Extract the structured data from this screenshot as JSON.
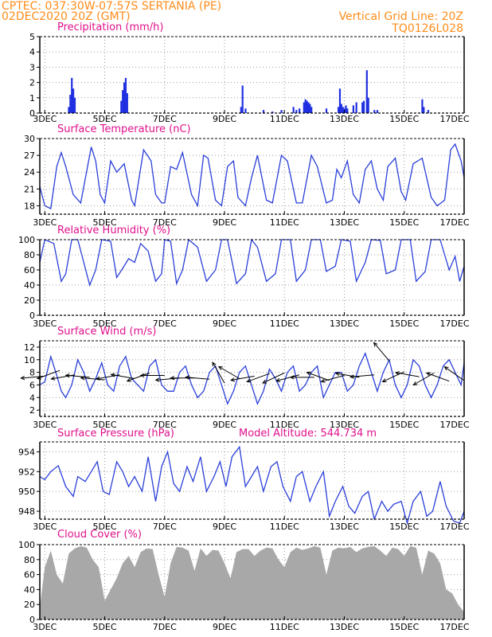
{
  "header": {
    "line1": "CPTEC:   037:30W-07:57S   SERTANIA (PE)",
    "line2": "02DEC2020 20Z (GMT)",
    "grid_note": "Vertical Grid Line: 20Z",
    "code": "TQ0126L028"
  },
  "colors": {
    "header": "#ff8c1a",
    "title": "#e0108c",
    "line": "#2a3fd8",
    "bar": "#2030e0",
    "cloud": "#a8a8a8",
    "grid": "#9a9a9a"
  },
  "x_axis": {
    "range_days": [
      2.8333,
      17.0
    ],
    "tick_days": [
      3,
      5,
      7,
      9,
      11,
      13,
      15,
      17
    ],
    "tick_labels": [
      "3DEC",
      "5DEC",
      "7DEC",
      "9DEC",
      "11DEC",
      "13DEC",
      "15DEC",
      "17DEC"
    ]
  },
  "chart_data": [
    {
      "type": "bar",
      "title": "Precipitation (mm/h)",
      "ylim": [
        0,
        5
      ],
      "yticks": [
        0,
        1,
        2,
        3,
        4,
        5
      ],
      "x": [
        3.8,
        3.85,
        3.9,
        3.95,
        4.0,
        5.55,
        5.6,
        5.65,
        5.7,
        5.75,
        9.55,
        9.6,
        9.7,
        10.3,
        10.6,
        10.9,
        11.3,
        11.4,
        11.5,
        11.65,
        11.7,
        11.75,
        11.8,
        11.85,
        11.9,
        12.4,
        12.8,
        12.85,
        12.9,
        12.95,
        13.0,
        13.05,
        13.1,
        13.3,
        13.4,
        13.6,
        13.65,
        13.75,
        13.8,
        14.0,
        14.1,
        15.6,
        15.65,
        15.8
      ],
      "values": [
        0.4,
        1.2,
        2.3,
        1.6,
        1.0,
        0.8,
        1.5,
        2.0,
        2.3,
        1.3,
        0.4,
        1.8,
        0.3,
        0.2,
        0.1,
        0.2,
        0.4,
        0.2,
        0.3,
        0.7,
        0.9,
        0.8,
        0.7,
        0.6,
        0.4,
        0.3,
        0.4,
        1.6,
        0.6,
        0.4,
        0.3,
        0.5,
        0.3,
        0.5,
        0.7,
        0.7,
        0.8,
        2.8,
        1.0,
        0.2,
        0.2,
        0.9,
        0.4,
        0.2
      ]
    },
    {
      "type": "line",
      "title": "Surface Temperature (nC)",
      "ylim": [
        16.5,
        30
      ],
      "yticks": [
        18,
        21,
        24,
        27,
        30
      ],
      "x": [
        2.83,
        3.0,
        3.2,
        3.4,
        3.55,
        3.7,
        3.95,
        4.2,
        4.55,
        4.7,
        4.85,
        5.0,
        5.2,
        5.4,
        5.65,
        5.9,
        6.0,
        6.3,
        6.55,
        6.7,
        6.9,
        7.0,
        7.2,
        7.4,
        7.6,
        7.9,
        8.1,
        8.3,
        8.45,
        8.7,
        8.9,
        9.1,
        9.3,
        9.45,
        9.7,
        9.9,
        10.1,
        10.4,
        10.6,
        10.9,
        11.1,
        11.4,
        11.6,
        11.9,
        12.1,
        12.4,
        12.6,
        12.75,
        12.9,
        13.1,
        13.3,
        13.5,
        13.7,
        13.9,
        14.1,
        14.3,
        14.45,
        14.7,
        14.9,
        15.05,
        15.3,
        15.6,
        15.9,
        16.1,
        16.35,
        16.55,
        16.7,
        16.9,
        17.0
      ],
      "values": [
        21.5,
        18.0,
        17.5,
        25.0,
        27.5,
        25.0,
        20.0,
        18.5,
        28.5,
        26.0,
        20.0,
        18.5,
        26.0,
        24.0,
        25.5,
        19.0,
        18.0,
        28.0,
        26.0,
        20.0,
        18.5,
        18.5,
        25.0,
        24.5,
        27.5,
        20.0,
        18.0,
        27.0,
        26.5,
        19.0,
        18.0,
        25.0,
        26.0,
        19.5,
        18.0,
        23.0,
        27.0,
        19.0,
        18.5,
        27.0,
        26.0,
        18.5,
        18.5,
        27.0,
        25.0,
        18.5,
        19.0,
        24.5,
        23.0,
        26.0,
        20.0,
        18.5,
        24.5,
        26.0,
        21.0,
        19.0,
        25.0,
        26.5,
        20.5,
        19.0,
        25.5,
        26.5,
        19.5,
        18.0,
        19.0,
        28.0,
        29.0,
        26.0,
        23.0
      ]
    },
    {
      "type": "line",
      "title": "Relative Humidity (%)",
      "ylim": [
        0,
        100
      ],
      "yticks": [
        0,
        20,
        40,
        60,
        80,
        100
      ],
      "x": [
        2.83,
        3.0,
        3.3,
        3.55,
        3.7,
        3.9,
        4.1,
        4.5,
        4.7,
        4.9,
        5.2,
        5.4,
        5.6,
        5.8,
        6.0,
        6.2,
        6.45,
        6.7,
        6.9,
        7.0,
        7.2,
        7.4,
        7.6,
        7.8,
        8.1,
        8.4,
        8.7,
        8.9,
        9.1,
        9.4,
        9.7,
        9.9,
        10.1,
        10.4,
        10.7,
        10.9,
        11.2,
        11.4,
        11.7,
        11.9,
        12.2,
        12.4,
        12.7,
        12.9,
        13.2,
        13.4,
        13.7,
        13.9,
        14.2,
        14.4,
        14.7,
        14.9,
        15.2,
        15.4,
        15.7,
        15.9,
        16.2,
        16.5,
        16.7,
        16.85,
        17.0
      ],
      "values": [
        70,
        100,
        95,
        45,
        55,
        100,
        100,
        40,
        60,
        100,
        98,
        50,
        62,
        75,
        70,
        95,
        85,
        45,
        55,
        100,
        98,
        42,
        60,
        100,
        90,
        45,
        60,
        100,
        100,
        42,
        55,
        100,
        90,
        45,
        55,
        100,
        100,
        45,
        60,
        100,
        100,
        58,
        65,
        100,
        98,
        45,
        70,
        100,
        99,
        55,
        60,
        100,
        100,
        45,
        58,
        100,
        100,
        60,
        78,
        45,
        65
      ]
    },
    {
      "type": "line",
      "title": "Surface Wind (m/s)",
      "ylim": [
        1,
        13
      ],
      "yticks": [
        2,
        4,
        6,
        8,
        10,
        12
      ],
      "x": [
        2.83,
        3.0,
        3.2,
        3.4,
        3.55,
        3.7,
        3.9,
        4.1,
        4.3,
        4.5,
        4.7,
        4.9,
        5.1,
        5.3,
        5.5,
        5.7,
        5.9,
        6.1,
        6.3,
        6.5,
        6.7,
        6.9,
        7.1,
        7.3,
        7.5,
        7.7,
        7.9,
        8.1,
        8.3,
        8.5,
        8.7,
        8.9,
        9.1,
        9.3,
        9.5,
        9.7,
        9.9,
        10.1,
        10.3,
        10.5,
        10.7,
        10.9,
        11.1,
        11.3,
        11.5,
        11.7,
        11.9,
        12.1,
        12.3,
        12.5,
        12.7,
        12.9,
        13.1,
        13.3,
        13.5,
        13.7,
        13.9,
        14.1,
        14.3,
        14.5,
        14.7,
        14.9,
        15.1,
        15.3,
        15.5,
        15.7,
        15.9,
        16.1,
        16.3,
        16.5,
        16.7,
        16.9,
        17.0
      ],
      "values": [
        6,
        6.5,
        10.5,
        7.5,
        5,
        4,
        6,
        10,
        8,
        5,
        7,
        9.5,
        6,
        5,
        9,
        10.5,
        7,
        6,
        5,
        9,
        10,
        6,
        5,
        5,
        8,
        9,
        6,
        4,
        5,
        8,
        9,
        6,
        3,
        5,
        8,
        9,
        6,
        3,
        5,
        8.5,
        7,
        5,
        8,
        9,
        5,
        6,
        8,
        9,
        4,
        6,
        8,
        8,
        5,
        6,
        9,
        11,
        8,
        5,
        8,
        10,
        6,
        4,
        6,
        10,
        9,
        6,
        4,
        6,
        9,
        10,
        8,
        6,
        9.5
      ],
      "wind_barbs": {
        "x": [
          3.0,
          3.5,
          4.0,
          4.5,
          5.0,
          5.5,
          6.0,
          6.5,
          7.0,
          7.5,
          8.0,
          8.5,
          9.0,
          9.5,
          10.0,
          10.5,
          11.0,
          11.5,
          12.0,
          12.5,
          13.0,
          13.5,
          14.0,
          14.5,
          15.0,
          15.5,
          16.0,
          16.5,
          17.0
        ],
        "speed": [
          7.4,
          8.3,
          7.6,
          7.2,
          6.8,
          7.6,
          7.0,
          7.9,
          7.5,
          7.1,
          7.1,
          6.9,
          6.3,
          7.0,
          7.4,
          7.8,
          7.9,
          7.6,
          7.2,
          6.7,
          7.5,
          7.2,
          7.6,
          9.8,
          8.1,
          7.3,
          7.9,
          6.6,
          6.7
        ],
        "dir_deg": [
          85,
          70,
          80,
          95,
          95,
          80,
          100,
          70,
          90,
          85,
          90,
          95,
          150,
          120,
          80,
          70,
          65,
          75,
          90,
          110,
          75,
          100,
          85,
          140,
          65,
          100,
          60,
          110,
          125
        ]
      }
    },
    {
      "type": "line",
      "title": "Surface Pressure (hPa)",
      "annotation": "Model Altitude: 544.734 m",
      "ylim": [
        947.2,
        955
      ],
      "yticks": [
        948,
        950,
        952,
        954
      ],
      "x": [
        2.83,
        3.0,
        3.2,
        3.45,
        3.7,
        3.95,
        4.1,
        4.35,
        4.55,
        4.75,
        4.95,
        5.15,
        5.4,
        5.6,
        5.8,
        6.0,
        6.25,
        6.45,
        6.7,
        6.9,
        7.1,
        7.3,
        7.5,
        7.75,
        7.95,
        8.2,
        8.4,
        8.65,
        8.85,
        9.05,
        9.25,
        9.5,
        9.7,
        9.9,
        10.1,
        10.3,
        10.55,
        10.75,
        10.95,
        11.2,
        11.4,
        11.6,
        11.85,
        12.05,
        12.3,
        12.5,
        12.7,
        12.95,
        13.15,
        13.35,
        13.6,
        13.8,
        14.0,
        14.25,
        14.45,
        14.65,
        14.9,
        15.1,
        15.3,
        15.55,
        15.75,
        15.95,
        16.2,
        16.4,
        16.65,
        16.85,
        17.0
      ],
      "values": [
        951.5,
        951.2,
        952.0,
        952.6,
        950.5,
        949.5,
        951.5,
        951.0,
        952.0,
        953.0,
        950.0,
        949.7,
        953.0,
        952.0,
        950.5,
        951.5,
        950.0,
        953.5,
        949.0,
        952.5,
        954.0,
        950.8,
        950.0,
        952.5,
        951.0,
        953.5,
        950.0,
        951.5,
        953.0,
        950.5,
        953.5,
        954.5,
        950.5,
        951.5,
        952.5,
        950.0,
        952.5,
        953.0,
        950.5,
        949.0,
        951.5,
        952.0,
        949.0,
        950.5,
        952.0,
        947.5,
        949.0,
        950.5,
        948.5,
        947.8,
        949.5,
        950.0,
        947.2,
        949.0,
        948.0,
        948.7,
        949.0,
        946.8,
        949.0,
        950.0,
        947.5,
        948.0,
        951.0,
        948.5,
        947.0,
        946.8,
        948.0
      ]
    },
    {
      "type": "area",
      "title": "Cloud Cover (%)",
      "ylim": [
        0,
        100
      ],
      "yticks": [
        0,
        20,
        40,
        60,
        80,
        100
      ],
      "x": [
        2.83,
        3.0,
        3.2,
        3.4,
        3.6,
        3.8,
        4.0,
        4.2,
        4.4,
        4.6,
        4.8,
        5.0,
        5.2,
        5.4,
        5.6,
        5.8,
        6.0,
        6.2,
        6.4,
        6.6,
        6.8,
        7.0,
        7.2,
        7.4,
        7.6,
        7.8,
        8.0,
        8.2,
        8.4,
        8.6,
        8.8,
        9.0,
        9.2,
        9.4,
        9.6,
        9.8,
        10.0,
        10.2,
        10.4,
        10.6,
        10.8,
        11.0,
        11.2,
        11.4,
        11.6,
        11.8,
        12.0,
        12.2,
        12.4,
        12.6,
        12.8,
        13.0,
        13.2,
        13.4,
        13.6,
        13.8,
        14.0,
        14.2,
        14.4,
        14.6,
        14.8,
        15.0,
        15.2,
        15.4,
        15.6,
        15.8,
        16.0,
        16.2,
        16.4,
        16.6,
        16.8,
        17.0
      ],
      "values": [
        15,
        70,
        92,
        60,
        48,
        88,
        95,
        98,
        96,
        80,
        70,
        25,
        40,
        55,
        75,
        85,
        70,
        90,
        95,
        94,
        60,
        30,
        75,
        97,
        96,
        92,
        65,
        95,
        85,
        93,
        92,
        75,
        55,
        90,
        94,
        94,
        85,
        92,
        96,
        95,
        80,
        70,
        90,
        96,
        93,
        95,
        98,
        96,
        60,
        92,
        96,
        95,
        97,
        90,
        95,
        97,
        98,
        92,
        85,
        96,
        94,
        85,
        98,
        96,
        60,
        92,
        88,
        75,
        40,
        35,
        20,
        10
      ]
    }
  ]
}
